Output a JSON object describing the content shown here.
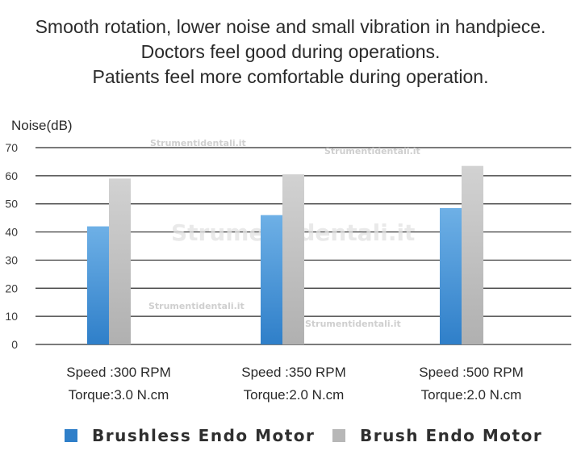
{
  "headline": {
    "line1": "Smooth rotation, lower noise and small vibration in handpiece.",
    "line2": "Doctors feel good during operations.",
    "line3": "Patients feel more comfortable during operation."
  },
  "watermark": "Strumentidentali.it",
  "colors": {
    "brushless": "#2f7fc9",
    "brush": "#b7b7b7",
    "grid": "#2b2b2b",
    "text": "#2a2a2a"
  },
  "chart_data": {
    "type": "bar",
    "ylabel": "Noise(dB)",
    "xlabel": "",
    "ylim": [
      0,
      70
    ],
    "yticks": [
      0,
      10,
      20,
      30,
      40,
      50,
      60,
      70
    ],
    "grid": true,
    "legend_position": "bottom",
    "categories": [
      {
        "line1": "Speed :300 RPM",
        "line2": "Torque:3.0 N.cm"
      },
      {
        "line1": "Speed :350 RPM",
        "line2": "Torque:2.0 N.cm"
      },
      {
        "line1": "Speed :500 RPM",
        "line2": "Torque:2.0 N.cm"
      }
    ],
    "series": [
      {
        "name": "Brushless Endo Motor",
        "values": [
          42,
          46,
          48.5
        ]
      },
      {
        "name": "Brush Endo Motor",
        "values": [
          59,
          60.5,
          63.5
        ]
      }
    ]
  }
}
